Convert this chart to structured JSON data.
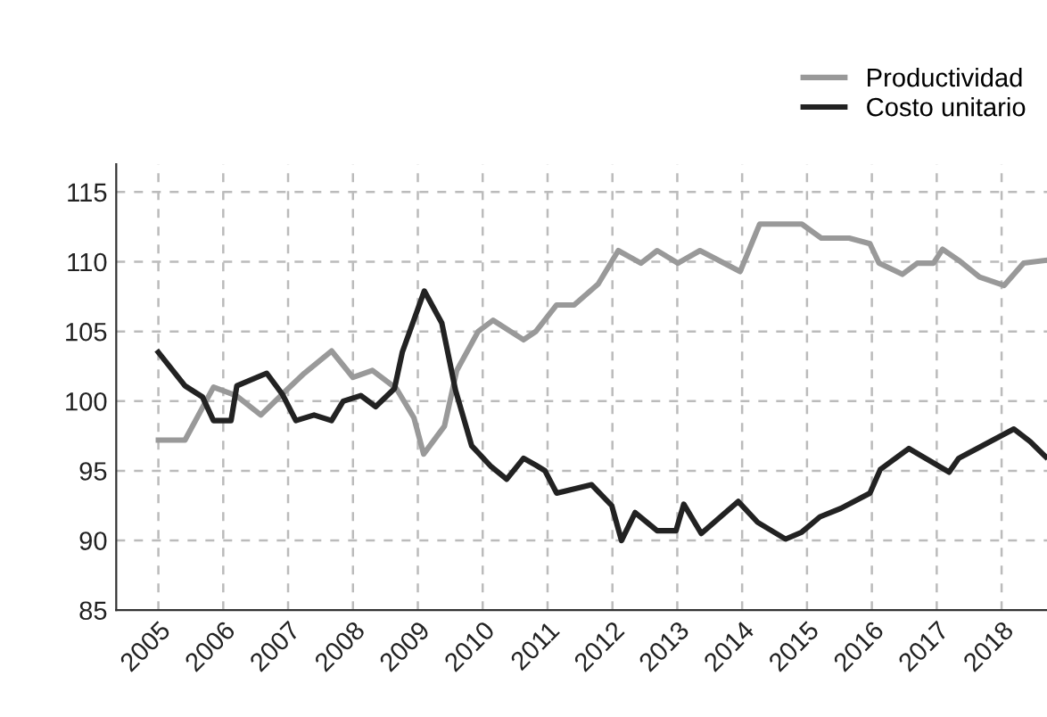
{
  "chart_data": {
    "type": "line",
    "xticks": [
      {
        "value": 2005,
        "label": "2005"
      },
      {
        "value": 2006,
        "label": "2006"
      },
      {
        "value": 2007,
        "label": "2007"
      },
      {
        "value": 2008,
        "label": "2008"
      },
      {
        "value": 2009,
        "label": "2009"
      },
      {
        "value": 2010,
        "label": "2010"
      },
      {
        "value": 2011,
        "label": "2011"
      },
      {
        "value": 2012,
        "label": "2012"
      },
      {
        "value": 2013,
        "label": "2013"
      },
      {
        "value": 2014,
        "label": "2014"
      },
      {
        "value": 2015,
        "label": "2015"
      },
      {
        "value": 2016,
        "label": "2016"
      },
      {
        "value": 2017,
        "label": "2017"
      },
      {
        "value": 2018,
        "label": "2018"
      }
    ],
    "xlim": [
      2004.35,
      2018.7
    ],
    "ylim": [
      85,
      117
    ],
    "yticks": [
      85,
      90,
      95,
      100,
      105,
      110,
      115
    ],
    "grid": true,
    "legend": "top right",
    "line_style": "solid",
    "marker": "none",
    "series": [
      {
        "name": "Productividad",
        "color": "#999999",
        "x": [
          2005.0,
          2005.41,
          2005.85,
          2006.2,
          2006.58,
          2007.0,
          2007.25,
          2007.67,
          2008.0,
          2008.3,
          2008.67,
          2008.94,
          2009.09,
          2009.41,
          2009.6,
          2009.93,
          2010.16,
          2010.63,
          2010.82,
          2011.14,
          2011.41,
          2011.78,
          2012.09,
          2012.44,
          2012.69,
          2013.01,
          2013.35,
          2013.97,
          2014.27,
          2014.92,
          2015.22,
          2015.65,
          2015.97,
          2016.11,
          2016.47,
          2016.7,
          2016.95,
          2017.09,
          2017.34,
          2017.66,
          2018.04,
          2018.34,
          2018.68
        ],
        "values": [
          97.2,
          97.2,
          101,
          100.4,
          99,
          100.9,
          102,
          103.6,
          101.7,
          102.2,
          100.9,
          98.8,
          96.2,
          98.2,
          102.2,
          105,
          105.8,
          104.4,
          105,
          106.9,
          106.9,
          108.4,
          110.8,
          109.9,
          110.8,
          109.9,
          110.8,
          109.3,
          112.7,
          112.7,
          111.7,
          111.7,
          111.3,
          109.9,
          109.1,
          109.9,
          109.9,
          110.9,
          110.1,
          108.9,
          108.3,
          109.9,
          110.1
        ]
      },
      {
        "name": "Costo unitario",
        "color": "#222222",
        "x": [
          2005.0,
          2005.41,
          2005.68,
          2005.85,
          2006.12,
          2006.21,
          2006.67,
          2006.91,
          2007.12,
          2007.4,
          2007.67,
          2007.85,
          2008.12,
          2008.35,
          2008.64,
          2008.76,
          2009.1,
          2009.37,
          2009.58,
          2009.83,
          2010.13,
          2010.37,
          2010.63,
          2010.82,
          2010.96,
          2011.14,
          2011.68,
          2011.99,
          2012.14,
          2012.35,
          2012.69,
          2012.98,
          2013.1,
          2013.37,
          2013.94,
          2014.24,
          2014.67,
          2014.92,
          2015.2,
          2015.52,
          2015.97,
          2016.13,
          2016.57,
          2017.19,
          2017.34,
          2018.19,
          2018.44,
          2018.68
        ],
        "values": [
          103.5,
          101.1,
          100.3,
          98.6,
          98.6,
          101.1,
          102,
          100.5,
          98.6,
          99,
          98.6,
          100,
          100.4,
          99.6,
          100.9,
          103.5,
          107.9,
          105.6,
          100.8,
          96.8,
          95.3,
          94.4,
          95.9,
          95.4,
          95,
          93.4,
          94,
          92.5,
          90,
          92,
          90.7,
          90.7,
          92.6,
          90.5,
          92.8,
          91.3,
          90.1,
          90.6,
          91.7,
          92.3,
          93.4,
          95.1,
          96.6,
          94.9,
          95.9,
          98,
          97.1,
          96
        ]
      }
    ]
  }
}
